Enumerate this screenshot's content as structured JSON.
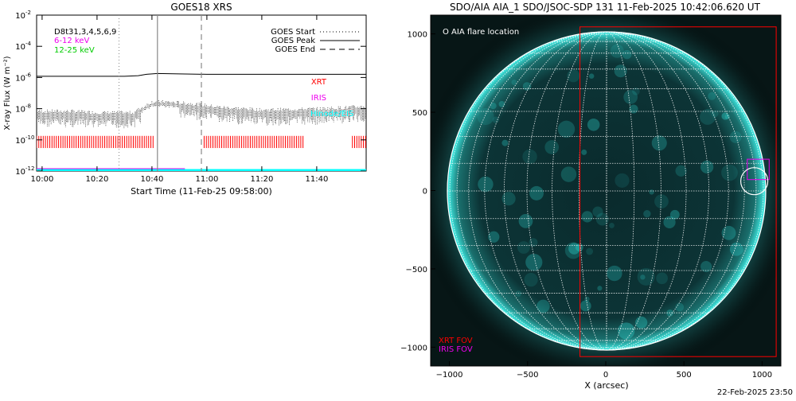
{
  "footer_timestamp": "22-Feb-2025 23:50",
  "colors": {
    "flux_6_12": "#000000",
    "label_6_12": "#ee00ee",
    "label_12_25": "#00cc00",
    "xrt": "#ff0000",
    "iris": "#ee00ee",
    "hinode": "#00ffff",
    "sun_face": "#0b2f31",
    "sun_bright": "#2fd8d2",
    "grid": "#ffffff"
  },
  "chart_data": [
    {
      "type": "line",
      "title": "GOES18 XRS",
      "xlabel": "Start Time (11-Feb-25 09:58:00)",
      "ylabel": "X-ray Flux (W m⁻²)",
      "xlim": [
        "09:58",
        "11:58"
      ],
      "ylim": [
        1e-12,
        0.01
      ],
      "yscale": "log",
      "x_ticks": [
        "10:00",
        "10:20",
        "10:40",
        "11:00",
        "11:20",
        "11:40"
      ],
      "y_ticks": [
        {
          "base": "10",
          "exp": "-12",
          "value": 1e-12
        },
        {
          "base": "10",
          "exp": "-10",
          "value": 1e-10
        },
        {
          "base": "10",
          "exp": "-8",
          "value": 1e-08
        },
        {
          "base": "10",
          "exp": "-6",
          "value": 1e-06
        },
        {
          "base": "10",
          "exp": "-4",
          "value": 0.0001
        },
        {
          "base": "10",
          "exp": "-2",
          "value": 0.01
        }
      ],
      "legend_left": [
        {
          "label": "D8t31,3,4,5,6,9",
          "color": "#000000"
        },
        {
          "label": "6-12 keV",
          "color": "#ee00ee"
        },
        {
          "label": "12-25 keV",
          "color": "#00cc00"
        }
      ],
      "legend_right": [
        {
          "label": "GOES Start",
          "dash": "dotted"
        },
        {
          "label": "GOES Peak",
          "dash": "solid"
        },
        {
          "label": "GOES End",
          "dash": "dashed"
        }
      ],
      "markers": {
        "start": "10:28",
        "peak": "10:42",
        "end": "10:58"
      },
      "series": [
        {
          "name": "6-12 keV",
          "x": [
            "09:58",
            "10:10",
            "10:20",
            "10:30",
            "10:35",
            "10:38",
            "10:42",
            "10:50",
            "11:00",
            "11:20",
            "11:40",
            "11:58"
          ],
          "values": [
            1.2e-06,
            1.2e-06,
            1.2e-06,
            1.2e-06,
            1.3e-06,
            1.6e-06,
            1.8e-06,
            1.7e-06,
            1.6e-06,
            1.6e-06,
            1.6e-06,
            1.6e-06
          ]
        },
        {
          "name": "12-25 keV",
          "x": [
            "09:58",
            "10:10",
            "10:20",
            "10:30",
            "10:33",
            "10:37",
            "10:40",
            "10:45",
            "10:55",
            "11:05",
            "11:20",
            "11:40",
            "11:58"
          ],
          "values": [
            5e-09,
            5e-09,
            4e-09,
            4e-09,
            4e-09,
            1e-08,
            2e-08,
            2e-08,
            1.5e-08,
            9e-09,
            6e-09,
            7e-09,
            1e-08
          ]
        }
      ],
      "coverage_labels": [
        "XRT",
        "IRIS",
        "Hinode/EIS"
      ],
      "xrt_coverage": [
        [
          "09:58",
          "10:41"
        ],
        [
          "10:59",
          "11:35"
        ],
        [
          "11:53",
          "11:58"
        ]
      ],
      "iris_coverage": [
        [
          "09:58",
          "10:52"
        ]
      ]
    },
    {
      "type": "image",
      "title": "SDO/AIA AIA_1 SDO/JSOC-SDP 131 11-Feb-2025 10:42:06.620 UT",
      "xlabel": "X (arcsec)",
      "ylabel": "",
      "xlim": [
        -1120,
        1120
      ],
      "ylim": [
        -1120,
        1120
      ],
      "x_ticks": [
        "−1000",
        "−500",
        "0",
        "500",
        "1000"
      ],
      "y_ticks": [
        "1000",
        "500",
        "0",
        "−500",
        "−1000"
      ],
      "legend": "O AIA flare location",
      "fov_labels": [
        {
          "label": "XRT FOV",
          "color": "#ff0000"
        },
        {
          "label": "IRIS FOV",
          "color": "#ee00ee"
        }
      ],
      "flare_location": {
        "x": 950,
        "y": 60
      },
      "xrt_fov": {
        "x0": -165,
        "x1": 1090,
        "y0": -1060,
        "y1": 1045
      },
      "iris_fov": {
        "x0": 905,
        "x1": 1045,
        "y0": 70,
        "y1": 200
      }
    }
  ]
}
